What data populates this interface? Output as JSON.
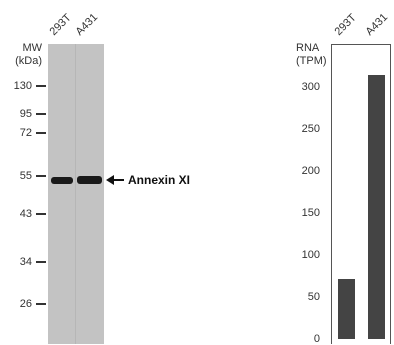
{
  "western_blot": {
    "axis_label_line1": "MW",
    "axis_label_line2": "(kDa)",
    "lanes": [
      "293T",
      "A431"
    ],
    "markers": [
      "130",
      "95",
      "72",
      "55",
      "43",
      "34",
      "26"
    ],
    "band_label": "Annexin XI"
  },
  "chart_data": {
    "type": "bar",
    "categories": [
      "293T",
      "A431"
    ],
    "values": [
      72,
      314
    ],
    "ylabel_line1": "RNA",
    "ylabel_line2": "(TPM)",
    "yticks": [
      "300",
      "250",
      "200",
      "150",
      "100",
      "50",
      "0"
    ],
    "ylim": [
      0,
      350
    ],
    "bar_color": "#444444",
    "grid": false
  }
}
